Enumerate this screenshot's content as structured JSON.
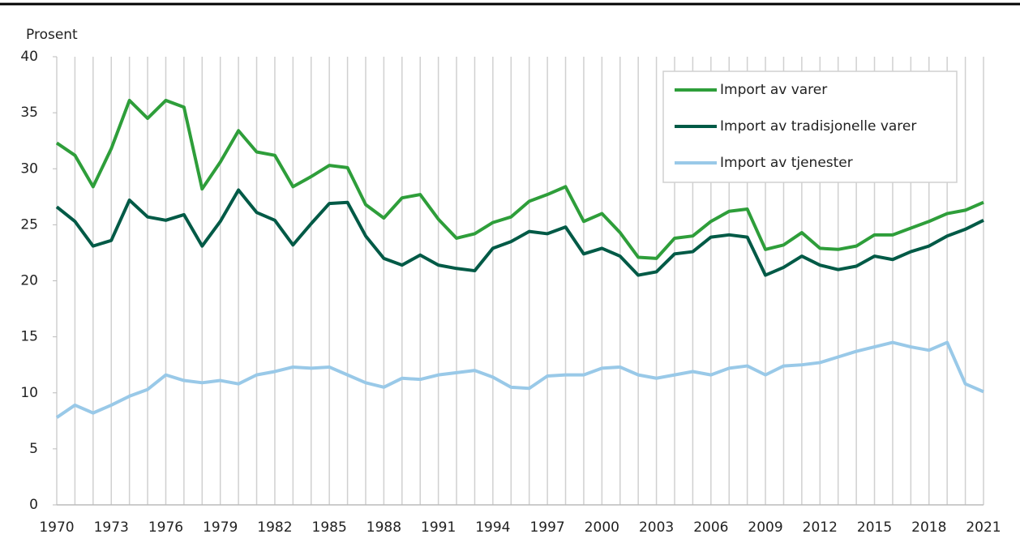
{
  "chart_data": {
    "type": "line",
    "y_label": "Prosent",
    "x": [
      1970,
      1971,
      1972,
      1973,
      1974,
      1975,
      1976,
      1977,
      1978,
      1979,
      1980,
      1981,
      1982,
      1983,
      1984,
      1985,
      1986,
      1987,
      1988,
      1989,
      1990,
      1991,
      1992,
      1993,
      1994,
      1995,
      1996,
      1997,
      1998,
      1999,
      2000,
      2001,
      2002,
      2003,
      2004,
      2005,
      2006,
      2007,
      2008,
      2009,
      2010,
      2011,
      2012,
      2013,
      2014,
      2015,
      2016,
      2017,
      2018,
      2019,
      2020,
      2021
    ],
    "series": [
      {
        "name": "Import av varer",
        "color": "#2e9e3a",
        "values": [
          32.3,
          31.2,
          28.4,
          31.8,
          36.1,
          34.5,
          36.1,
          35.5,
          28.2,
          30.6,
          33.4,
          31.5,
          31.2,
          28.4,
          29.3,
          30.3,
          30.1,
          26.8,
          25.6,
          27.4,
          27.7,
          25.5,
          23.8,
          24.2,
          25.2,
          25.7,
          27.1,
          27.7,
          28.4,
          25.3,
          26.0,
          24.3,
          22.1,
          22.0,
          23.8,
          24.0,
          25.3,
          26.2,
          26.4,
          22.8,
          23.2,
          24.3,
          22.9,
          22.8,
          23.1,
          24.1,
          24.1,
          24.7,
          25.3,
          26.0,
          26.3,
          27.0
        ]
      },
      {
        "name": "Import av tradisjonelle varer",
        "color": "#005a46",
        "values": [
          26.6,
          25.3,
          23.1,
          23.6,
          27.2,
          25.7,
          25.4,
          25.9,
          23.1,
          25.3,
          28.1,
          26.1,
          25.4,
          23.2,
          25.1,
          26.9,
          27.0,
          24.0,
          22.0,
          21.4,
          22.3,
          21.4,
          21.1,
          20.9,
          22.9,
          23.5,
          24.4,
          24.2,
          24.8,
          22.4,
          22.9,
          22.2,
          20.5,
          20.8,
          22.4,
          22.6,
          23.9,
          24.1,
          23.9,
          20.5,
          21.2,
          22.2,
          21.4,
          21.0,
          21.3,
          22.2,
          21.9,
          22.6,
          23.1,
          24.0,
          24.6,
          25.4
        ]
      },
      {
        "name": "Import av tjenester",
        "color": "#99c9e8",
        "values": [
          7.8,
          8.9,
          8.2,
          8.9,
          9.7,
          10.3,
          11.6,
          11.1,
          10.9,
          11.1,
          10.8,
          11.6,
          11.9,
          12.3,
          12.2,
          12.3,
          11.6,
          10.9,
          10.5,
          11.3,
          11.2,
          11.6,
          11.8,
          12.0,
          11.4,
          10.5,
          10.4,
          11.5,
          11.6,
          11.6,
          12.2,
          12.3,
          11.6,
          11.3,
          11.6,
          11.9,
          11.6,
          12.2,
          12.4,
          11.6,
          12.4,
          12.5,
          12.7,
          13.2,
          13.7,
          14.1,
          14.5,
          14.1,
          13.8,
          14.5,
          10.8,
          10.1
        ]
      }
    ],
    "xlim": [
      1970,
      2021
    ],
    "xticks": [
      1970,
      1973,
      1976,
      1979,
      1982,
      1985,
      1988,
      1991,
      1994,
      1997,
      2000,
      2003,
      2006,
      2009,
      2012,
      2015,
      2018,
      2021
    ],
    "ylim": [
      0,
      40
    ],
    "yticks": [
      0,
      5,
      10,
      15,
      20,
      25,
      30,
      35,
      40
    ],
    "grid": "x",
    "legend": "upper right"
  }
}
